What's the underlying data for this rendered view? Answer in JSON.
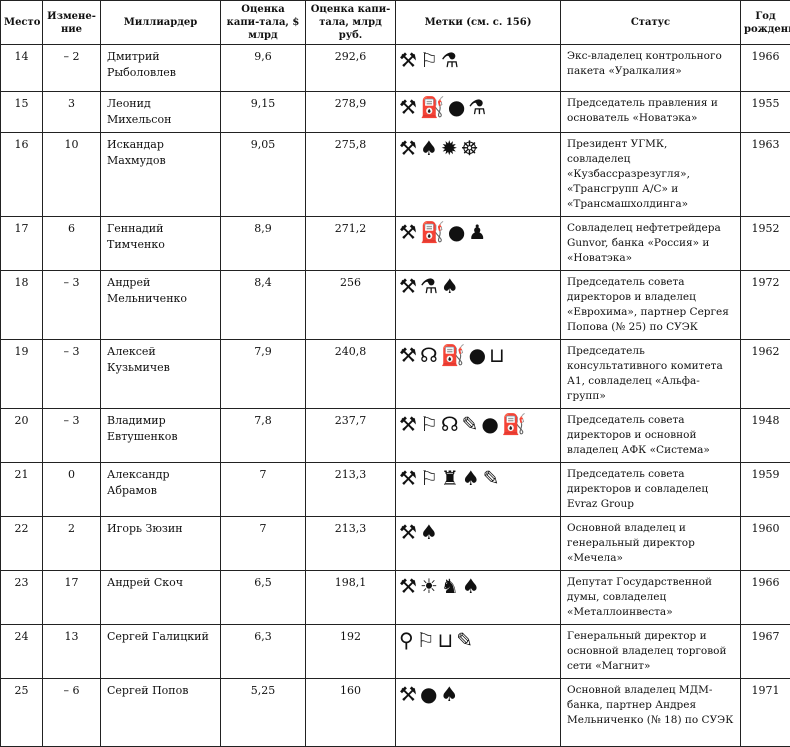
{
  "headers": [
    "Место",
    "Измене-ние",
    "Миллиардер",
    "Оценка капи-тала, $ млрд",
    "Оценка капи-тала, млрд руб.",
    "Метки (см. с. 156)",
    "Статус",
    "Год рождения"
  ],
  "icon_glyphs": {
    "hammer": "⚒",
    "runner": "⚐",
    "flask": "⚗",
    "fuel-pump": "⛽",
    "sack": "●",
    "saw-blade": "✹",
    "ship-wheel": "☸",
    "miner": "♟",
    "drop": "♠",
    "satellite-dish": "☊",
    "cart": "⊔",
    "trowel": "✎",
    "tower": "♜",
    "sun": "☀",
    "bear": "♞",
    "magnet": "⚲"
  },
  "rows": [
    {
      "rank": "14",
      "change": "– 2",
      "name": "Дмитрий Рыболовлев",
      "usd": "9,6",
      "rub": "292,6",
      "icons": [
        "hammer",
        "runner",
        "flask"
      ],
      "status": "Экс-владелец контрольного пакета «Уралкалия»",
      "year": "1966",
      "h": 47
    },
    {
      "rank": "15",
      "change": "3",
      "name": "Леонид Михельсон",
      "usd": "9,15",
      "rub": "278,9",
      "icons": [
        "hammer",
        "fuel-pump",
        "sack",
        "flask"
      ],
      "status": "Председатель правления и основатель «Новатэка»",
      "year": "1955",
      "h": 37
    },
    {
      "rank": "16",
      "change": "10",
      "name": "Искандар Махмудов",
      "usd": "9,05",
      "rub": "275,8",
      "icons": [
        "hammer",
        "drop",
        "saw-blade",
        "ship-wheel"
      ],
      "status": "Президент УГМК, совладелец «Кузбассразрезугля», «Трансгрупп А/С» и «Трансмашхолдинга»",
      "year": "1963",
      "h": 64
    },
    {
      "rank": "17",
      "change": "6",
      "name": "Геннадий Тимченко",
      "usd": "8,9",
      "rub": "271,2",
      "icons": [
        "hammer",
        "fuel-pump",
        "sack",
        "miner"
      ],
      "status": "Совладелец нефтетрейдера Gunvor, банка «Россия» и «Новатэка»",
      "year": "1952",
      "h": 53
    },
    {
      "rank": "18",
      "change": "– 3",
      "name": "Андрей Мельниченко",
      "usd": "8,4",
      "rub": "256",
      "icons": [
        "hammer",
        "flask",
        "drop"
      ],
      "status": "Председатель совета директоров и владелец «Еврохима», партнер Сергея Попова (№ 25) по СУЭК",
      "year": "1972",
      "h": 65
    },
    {
      "rank": "19",
      "change": "– 3",
      "name": "Алексей Кузьмичев",
      "usd": "7,9",
      "rub": "240,8",
      "icons": [
        "hammer",
        "satellite-dish",
        "fuel-pump",
        "sack",
        "cart"
      ],
      "status": "Председатель консультативного комитета А1, совладелец «Альфа-групп»",
      "year": "1962",
      "h": 53
    },
    {
      "rank": "20",
      "change": "– 3",
      "name": "Владимир Евтушенков",
      "usd": "7,8",
      "rub": "237,7",
      "icons": [
        "hammer",
        "runner",
        "satellite-dish",
        "trowel",
        "sack",
        "fuel-pump"
      ],
      "status": "Председатель совета директоров и основной владелец АФК «Система»",
      "year": "1948",
      "h": 52
    },
    {
      "rank": "21",
      "change": "0",
      "name": "Александр Абрамов",
      "usd": "7",
      "rub": "213,3",
      "icons": [
        "hammer",
        "runner",
        "tower",
        "drop",
        "trowel"
      ],
      "status": "Председатель совета директоров и совладелец Evraz Group",
      "year": "1959",
      "h": 52
    },
    {
      "rank": "22",
      "change": "2",
      "name": "Игорь Зюзин",
      "usd": "7",
      "rub": "213,3",
      "icons": [
        "hammer",
        "drop"
      ],
      "status": "Основной владелец и генеральный директор «Мечела»",
      "year": "1960",
      "h": 53
    },
    {
      "rank": "23",
      "change": "17",
      "name": "Андрей Скоч",
      "usd": "6,5",
      "rub": "198,1",
      "icons": [
        "hammer",
        "sun",
        "bear",
        "drop"
      ],
      "status": "Депутат Государственной думы, совладелец «Металлоинвеста»",
      "year": "1966",
      "h": 53
    },
    {
      "rank": "24",
      "change": "13",
      "name": "Сергей Галицкий",
      "usd": "6,3",
      "rub": "192",
      "icons": [
        "magnet",
        "runner",
        "cart",
        "trowel"
      ],
      "status": "Генеральный директор и основной владелец торговой сети «Магнит»",
      "year": "1967",
      "h": 52
    },
    {
      "rank": "25",
      "change": "– 6",
      "name": "Сергей Попов",
      "usd": "5,25",
      "rub": "160",
      "icons": [
        "hammer",
        "sack",
        "drop"
      ],
      "status": "Основной владелец МДМ-банка, партнер Андрея Мельниченко (№ 18) по СУЭК",
      "year": "1971",
      "h": 68
    }
  ]
}
